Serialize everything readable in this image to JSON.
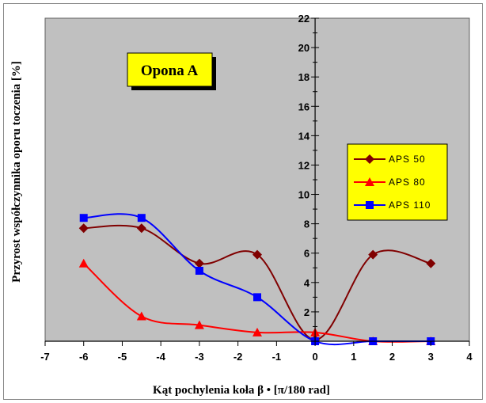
{
  "chart_data": {
    "type": "line",
    "title": "Opona A",
    "xlabel": "Kąt pochylenia koła β • [π/180 rad]",
    "ylabel": "Przyrost współczynnika oporu toczenia [%]",
    "xlim": [
      -7,
      4
    ],
    "ylim": [
      0,
      22
    ],
    "xticks": [
      -7,
      -6,
      -5,
      -4,
      -3,
      -2,
      -1,
      0,
      1,
      2,
      3,
      4
    ],
    "yticks": [
      2,
      4,
      6,
      8,
      10,
      12,
      14,
      16,
      18,
      20,
      22
    ],
    "grid": false,
    "legend_position": "right",
    "plot_background": "#c0c0c0",
    "series": [
      {
        "name": "APS  50",
        "color": "#800000",
        "marker": "diamond",
        "x": [
          -6,
          -4.5,
          -3,
          -1.5,
          0,
          1.5,
          3
        ],
        "y": [
          7.7,
          7.7,
          5.3,
          5.9,
          0.1,
          5.9,
          5.3
        ]
      },
      {
        "name": "APS  80",
        "color": "#ff0000",
        "marker": "triangle",
        "x": [
          -6,
          -4.5,
          -3,
          -1.5,
          0,
          1.5,
          3
        ],
        "y": [
          5.3,
          1.7,
          1.1,
          0.6,
          0.6,
          0.0,
          0.0
        ]
      },
      {
        "name": "APS  110",
        "color": "#0000ff",
        "marker": "square",
        "x": [
          -6,
          -4.5,
          -3,
          -1.5,
          0,
          1.5,
          3
        ],
        "y": [
          8.4,
          8.4,
          4.8,
          3.0,
          0.0,
          0.0,
          0.0
        ]
      }
    ]
  }
}
